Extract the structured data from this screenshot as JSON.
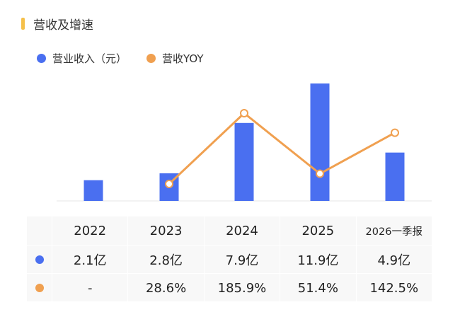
{
  "section_title": "营收及增速",
  "colors": {
    "bar": "#4a6ff0",
    "line": "#f0a050",
    "accent_bar": "#f5c04a"
  },
  "legend": [
    {
      "label": "营业收入（元）",
      "color": "#4a6ff0",
      "shape": "circle"
    },
    {
      "label": "营收YOY",
      "color": "#f0a050",
      "shape": "circle"
    }
  ],
  "chart_data": {
    "type": "bar",
    "categories": [
      "2022",
      "2023",
      "2024",
      "2025",
      "2026一季报"
    ],
    "series": [
      {
        "name": "营业收入（元）",
        "type": "bar",
        "values": [
          2.1,
          2.8,
          7.9,
          11.9,
          4.9
        ],
        "unit": "亿"
      },
      {
        "name": "营收YOY",
        "type": "line",
        "values": [
          null,
          28.6,
          185.9,
          51.4,
          142.5
        ],
        "unit": "%"
      }
    ],
    "title": "营收及增速",
    "xlabel": "",
    "ylabel": "",
    "grid": false,
    "legend_position": "top-left",
    "axes_visible": false
  },
  "table": {
    "headers": [
      "2022",
      "2023",
      "2024",
      "2025",
      "2026一季报"
    ],
    "rows": [
      {
        "marker_color": "#4a6ff0",
        "cells": [
          "2.1亿",
          "2.8亿",
          "7.9亿",
          "11.9亿",
          "4.9亿"
        ]
      },
      {
        "marker_color": "#f0a050",
        "cells": [
          "-",
          "28.6%",
          "185.9%",
          "51.4%",
          "142.5%"
        ]
      }
    ]
  }
}
